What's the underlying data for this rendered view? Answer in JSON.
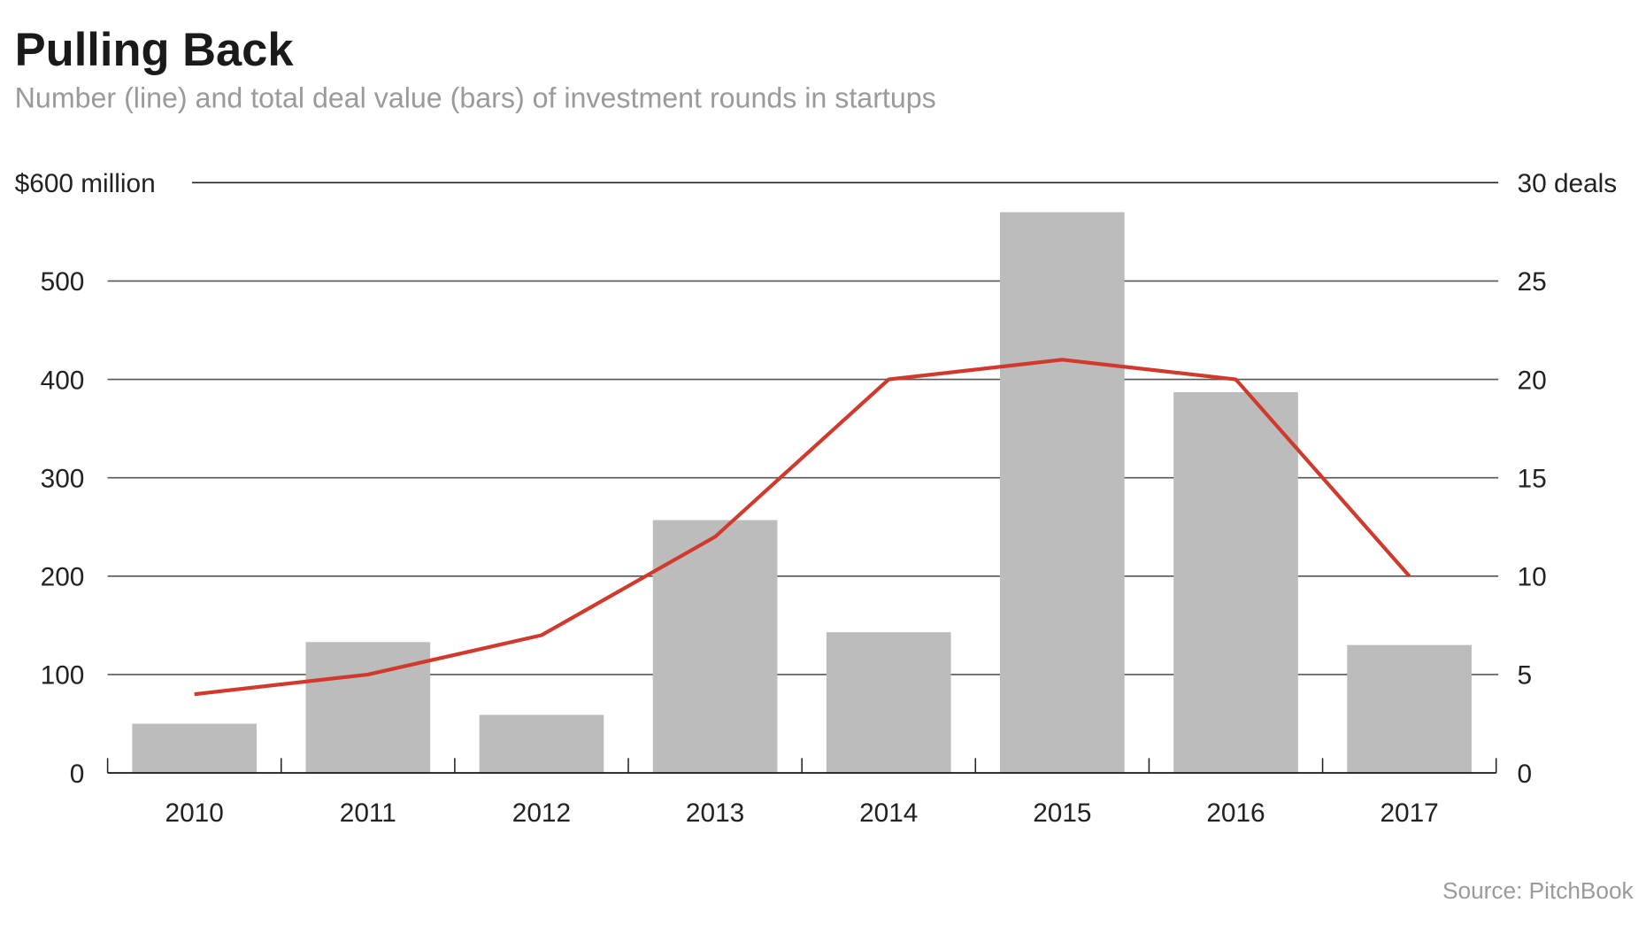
{
  "chart_data": {
    "type": "bar+line",
    "title": "Pulling Back",
    "subtitle": "Number (line) and total deal value (bars) of investment rounds in startups",
    "source": "Source: PitchBook",
    "categories": [
      "2010",
      "2011",
      "2012",
      "2013",
      "2014",
      "2015",
      "2016",
      "2017"
    ],
    "series": [
      {
        "type": "bar",
        "axis": "left",
        "values": [
          50,
          133,
          59,
          257,
          143,
          570,
          387,
          130
        ],
        "color": "#bcbcbc"
      },
      {
        "type": "line",
        "axis": "right",
        "values": [
          4,
          5,
          7,
          12,
          20,
          21,
          20,
          10
        ],
        "color": "#d0392b"
      }
    ],
    "left_axis": {
      "range": [
        0,
        600
      ],
      "ticks": [
        "0",
        "100",
        "200",
        "300",
        "400",
        "500",
        "$600 million"
      ]
    },
    "right_axis": {
      "range": [
        0,
        30
      ],
      "ticks": [
        "0",
        "5",
        "10",
        "15",
        "20",
        "25",
        "30 deals"
      ]
    },
    "grid": true
  }
}
